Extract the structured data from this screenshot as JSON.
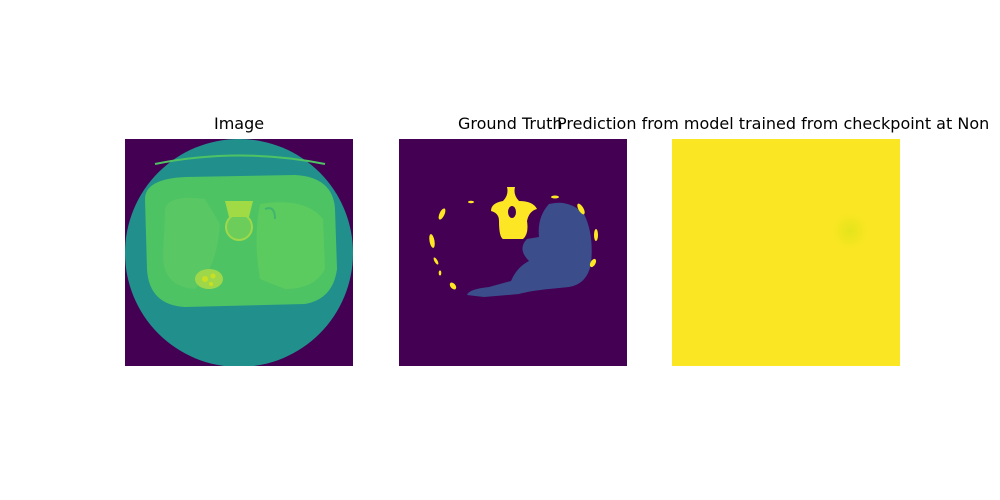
{
  "panels": [
    {
      "title": "Image"
    },
    {
      "title": "Ground Truth"
    },
    {
      "title": "Prediction from model trained from checkpoint at Non"
    }
  ],
  "colors": {
    "background": "#440154",
    "body_disc": "#21908c",
    "tissue": "#4ec363",
    "tissue_light": "#5ccb5f",
    "bright": "#c8e020",
    "label_high": "#fde725",
    "label_mid": "#3b4e8b",
    "prediction": "#fae622"
  }
}
